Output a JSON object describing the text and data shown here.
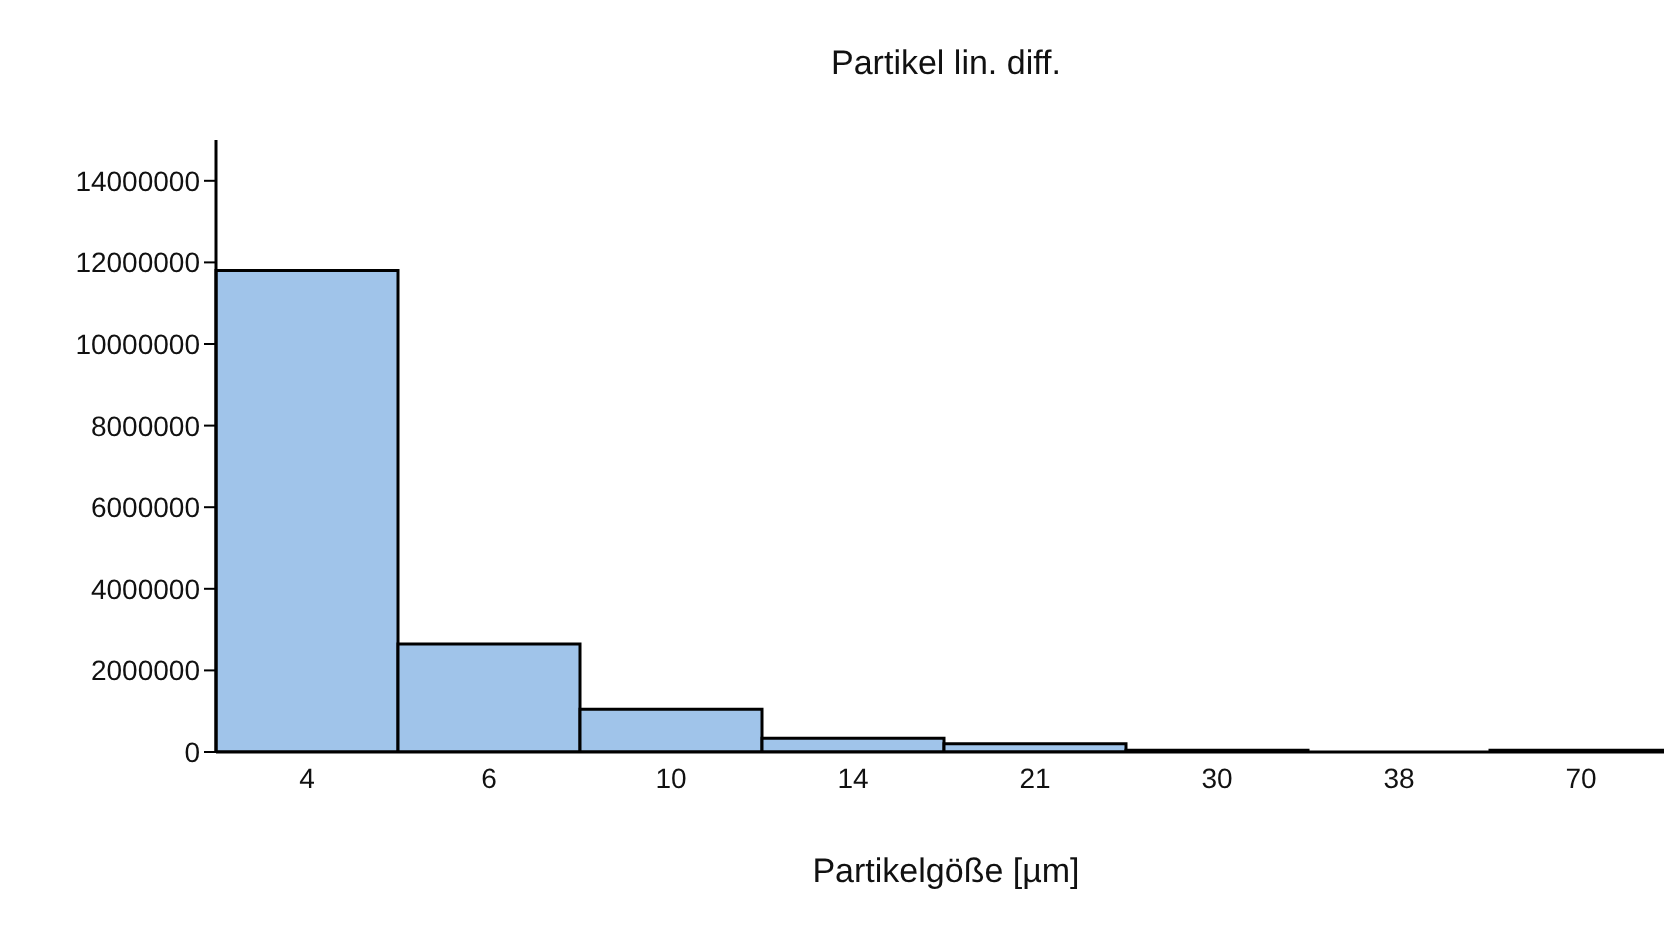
{
  "chart_data": {
    "type": "bar",
    "title": "Partikel lin. diff.",
    "xlabel": "Partikelgöße [µm]",
    "categories": [
      "4",
      "6",
      "10",
      "14",
      "21",
      "30",
      "38",
      "70"
    ],
    "values": [
      11800000,
      2650000,
      1050000,
      340000,
      200000,
      40000,
      null,
      40000
    ],
    "color": "#a0c4ea",
    "ylim": [
      0,
      15000000
    ],
    "yticks": [
      0,
      2000000,
      4000000,
      6000000,
      8000000,
      10000000,
      12000000,
      14000000
    ],
    "grid": false,
    "legend": false
  }
}
